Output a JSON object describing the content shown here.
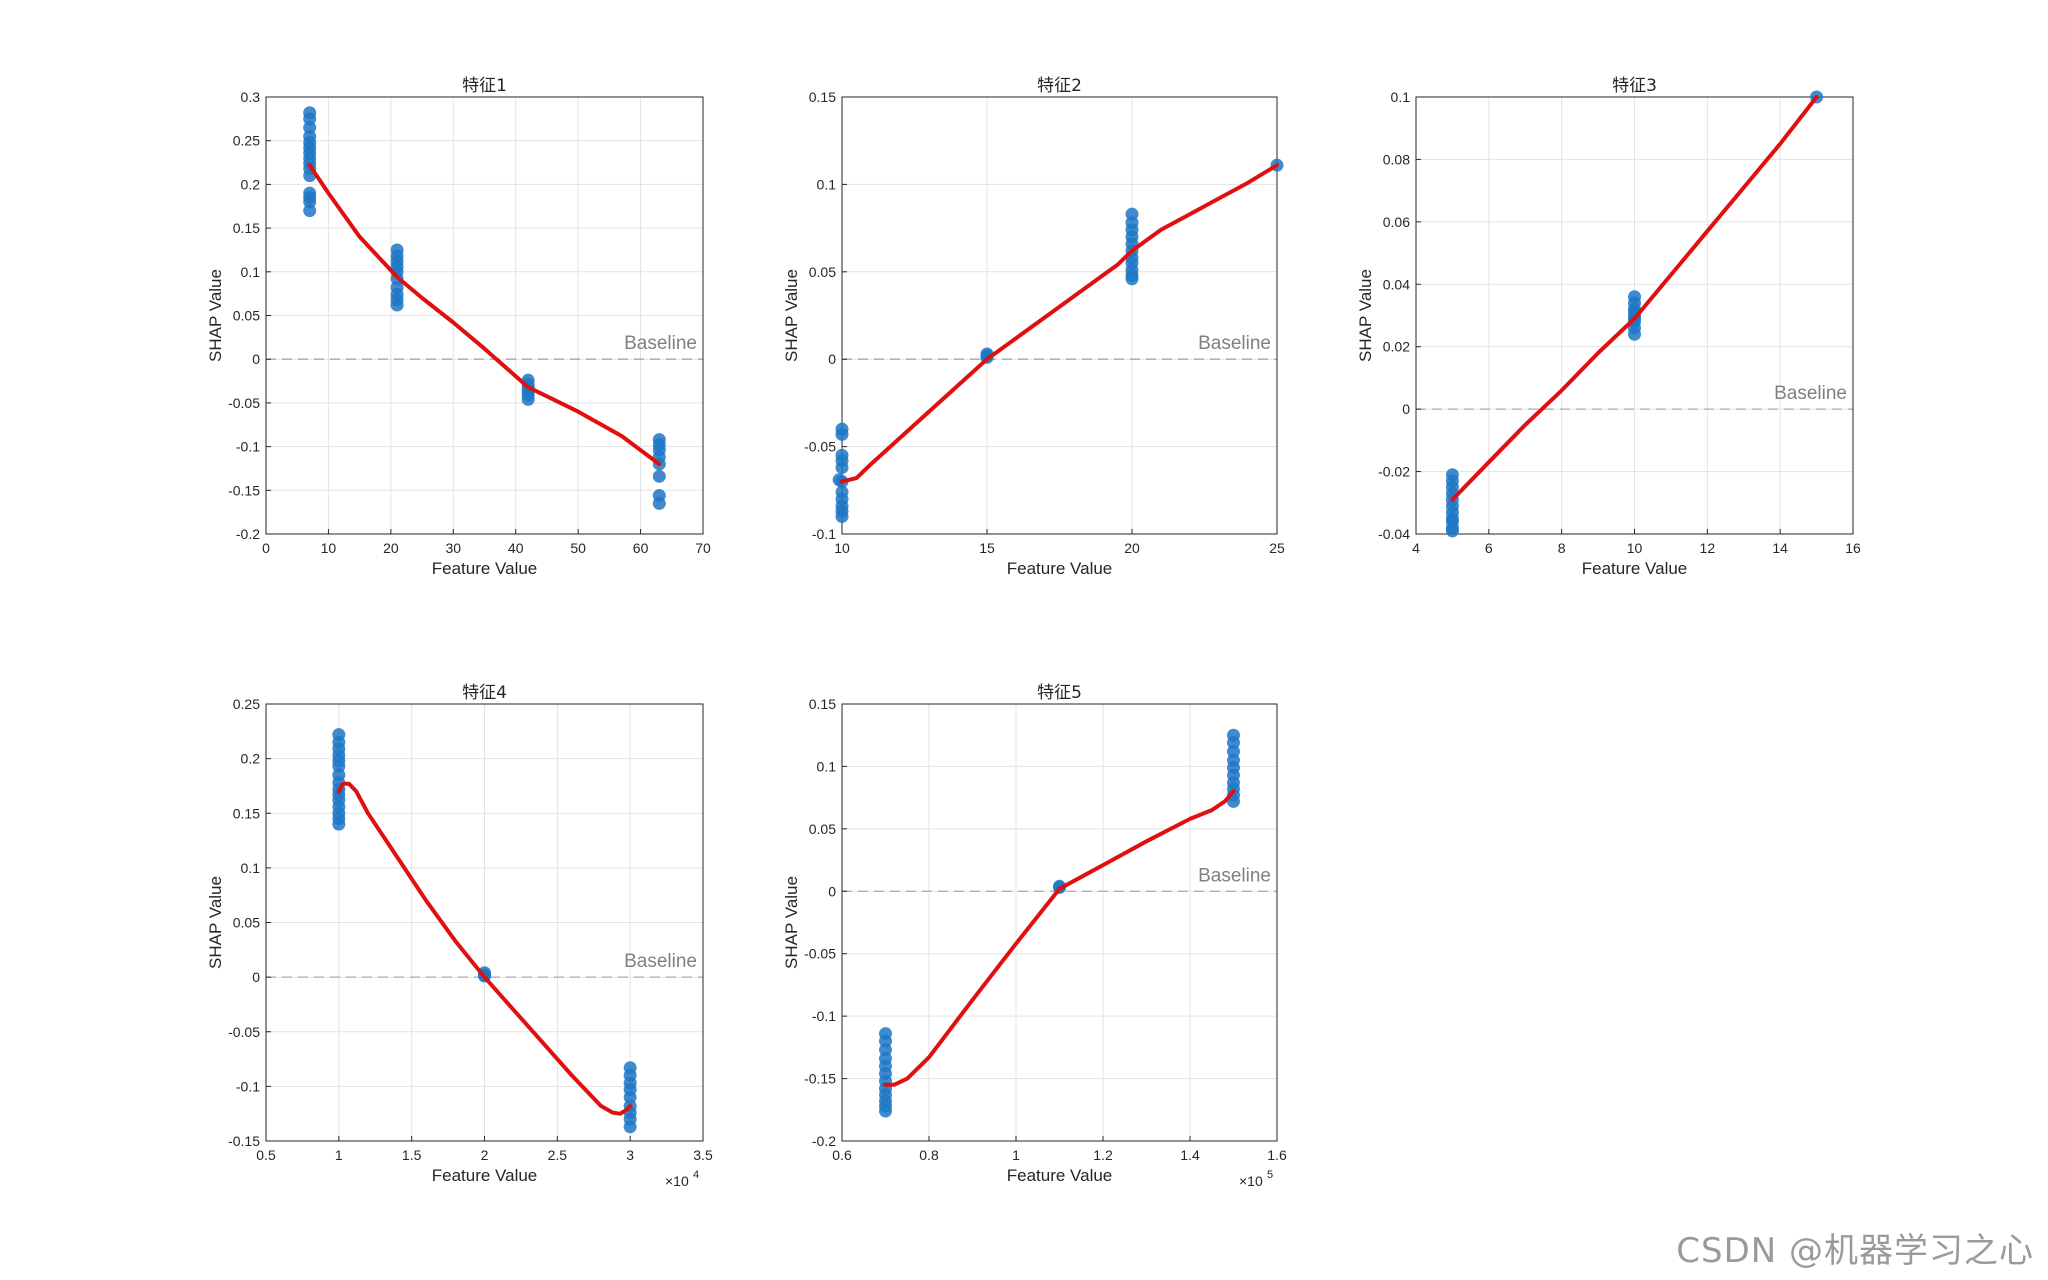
{
  "figure": {
    "watermark": "CSDN @机器学习之心"
  },
  "chart_data": [
    {
      "type": "scatter",
      "title": "特征1",
      "xlabel": "Feature Value",
      "ylabel": "SHAP Value",
      "xlim": [
        0,
        70
      ],
      "ylim": [
        -0.2,
        0.3
      ],
      "xticks": [
        0,
        10,
        20,
        30,
        40,
        50,
        60,
        70
      ],
      "xtick_labels": [
        "0",
        "10",
        "20",
        "30",
        "40",
        "50",
        "60",
        "70"
      ],
      "yticks": [
        -0.2,
        -0.15,
        -0.1,
        -0.05,
        0,
        0.05,
        0.1,
        0.15,
        0.2,
        0.25,
        0.3
      ],
      "ytick_labels": [
        "-0.2",
        "-0.15",
        "-0.1",
        "-0.05",
        "0",
        "0.05",
        "0.1",
        "0.15",
        "0.2",
        "0.25",
        "0.3"
      ],
      "x_exponent": "",
      "baseline": {
        "label": "Baseline",
        "value": 0
      },
      "points": {
        "x": [
          7,
          7,
          7,
          7,
          7,
          7,
          7,
          7,
          7,
          7,
          7,
          7,
          7,
          7,
          7,
          21,
          21,
          21,
          21,
          21,
          21,
          21,
          21,
          21,
          21,
          42,
          42,
          42,
          42,
          42,
          42,
          63,
          63,
          63,
          63,
          63,
          63,
          63,
          63
        ],
        "y": [
          0.282,
          0.275,
          0.265,
          0.255,
          0.248,
          0.242,
          0.236,
          0.23,
          0.224,
          0.218,
          0.21,
          0.19,
          0.185,
          0.18,
          0.17,
          0.125,
          0.118,
          0.112,
          0.106,
          0.1,
          0.092,
          0.082,
          0.074,
          0.068,
          0.062,
          -0.024,
          -0.029,
          -0.033,
          -0.037,
          -0.041,
          -0.046,
          -0.092,
          -0.098,
          -0.104,
          -0.112,
          -0.12,
          -0.134,
          -0.156,
          -0.165
        ]
      },
      "fit": {
        "x": [
          7,
          10,
          15,
          21,
          25,
          30,
          35,
          42,
          50,
          57,
          63
        ],
        "y": [
          0.222,
          0.19,
          0.14,
          0.094,
          0.07,
          0.042,
          0.012,
          -0.032,
          -0.06,
          -0.088,
          -0.12
        ]
      }
    },
    {
      "type": "scatter",
      "title": "特征2",
      "xlabel": "Feature Value",
      "ylabel": "SHAP Value",
      "xlim": [
        10,
        25
      ],
      "ylim": [
        -0.1,
        0.15
      ],
      "xticks": [
        10,
        15,
        20,
        25
      ],
      "xtick_labels": [
        "10",
        "15",
        "20",
        "25"
      ],
      "yticks": [
        -0.1,
        -0.05,
        0,
        0.05,
        0.1,
        0.15
      ],
      "ytick_labels": [
        "-0.1",
        "-0.05",
        "0",
        "0.05",
        "0.1",
        "0.15"
      ],
      "x_exponent": "",
      "baseline": {
        "label": "Baseline",
        "value": 0
      },
      "points": {
        "x": [
          10,
          10,
          10,
          10,
          10,
          10,
          10,
          10,
          10,
          10,
          10,
          9.9,
          15,
          15,
          15,
          20,
          20,
          20,
          20,
          20,
          20,
          20,
          20,
          20,
          20,
          20,
          25
        ],
        "y": [
          -0.04,
          -0.043,
          -0.055,
          -0.058,
          -0.062,
          -0.07,
          -0.076,
          -0.08,
          -0.084,
          -0.087,
          -0.09,
          -0.069,
          0.002,
          0.001,
          0.003,
          0.083,
          0.078,
          0.074,
          0.07,
          0.066,
          0.062,
          0.058,
          0.055,
          0.051,
          0.048,
          0.046,
          0.111
        ]
      },
      "fit": {
        "x": [
          10,
          10.5,
          11,
          12,
          13,
          14,
          15,
          16,
          17,
          18,
          19,
          19.5,
          20,
          20.5,
          21,
          22,
          23,
          24,
          25
        ],
        "y": [
          -0.07,
          -0.068,
          -0.06,
          -0.045,
          -0.03,
          -0.015,
          0.0,
          0.012,
          0.024,
          0.036,
          0.048,
          0.054,
          0.062,
          0.068,
          0.074,
          0.083,
          0.092,
          0.101,
          0.111
        ]
      }
    },
    {
      "type": "scatter",
      "title": "特征3",
      "xlabel": "Feature Value",
      "ylabel": "SHAP Value",
      "xlim": [
        4,
        16
      ],
      "ylim": [
        -0.04,
        0.1
      ],
      "xticks": [
        4,
        6,
        8,
        10,
        12,
        14,
        16
      ],
      "xtick_labels": [
        "4",
        "6",
        "8",
        "10",
        "12",
        "14",
        "16"
      ],
      "yticks": [
        -0.04,
        -0.02,
        0,
        0.02,
        0.04,
        0.06,
        0.08,
        0.1
      ],
      "ytick_labels": [
        "-0.04",
        "-0.02",
        "0",
        "0.02",
        "0.04",
        "0.06",
        "0.08",
        "0.1"
      ],
      "x_exponent": "",
      "baseline": {
        "label": "Baseline",
        "value": 0
      },
      "points": {
        "x": [
          5,
          5,
          5,
          5,
          5,
          5,
          5,
          5,
          5,
          5,
          5,
          10,
          10,
          10,
          10,
          10,
          10,
          10,
          10,
          10,
          15
        ],
        "y": [
          -0.021,
          -0.023,
          -0.025,
          -0.027,
          -0.029,
          -0.031,
          -0.033,
          -0.035,
          -0.036,
          -0.038,
          -0.039,
          0.036,
          0.034,
          0.032,
          0.031,
          0.03,
          0.029,
          0.028,
          0.026,
          0.024,
          0.1
        ]
      },
      "fit": {
        "x": [
          5,
          6,
          7,
          8,
          9,
          10,
          11,
          12,
          13,
          14,
          15
        ],
        "y": [
          -0.029,
          -0.017,
          -0.005,
          0.006,
          0.018,
          0.029,
          0.043,
          0.057,
          0.071,
          0.085,
          0.1
        ]
      }
    },
    {
      "type": "scatter",
      "title": "特征4",
      "xlabel": "Feature Value",
      "ylabel": "SHAP Value",
      "xlim": [
        0.5,
        3.5
      ],
      "ylim": [
        -0.15,
        0.25
      ],
      "xticks": [
        0.5,
        1,
        1.5,
        2,
        2.5,
        3,
        3.5
      ],
      "xtick_labels": [
        "0.5",
        "1",
        "1.5",
        "2",
        "2.5",
        "3",
        "3.5"
      ],
      "yticks": [
        -0.15,
        -0.1,
        -0.05,
        0,
        0.05,
        0.1,
        0.15,
        0.2,
        0.25
      ],
      "ytick_labels": [
        "-0.15",
        "-0.1",
        "-0.05",
        "0",
        "0.05",
        "0.1",
        "0.15",
        "0.2",
        "0.25"
      ],
      "x_exponent": "×10",
      "x_exponent_power": "4",
      "baseline": {
        "label": "Baseline",
        "value": 0
      },
      "points": {
        "x": [
          1,
          1,
          1,
          1,
          1,
          1,
          1,
          1,
          1,
          1,
          1,
          1,
          1,
          1,
          1,
          2,
          2,
          2,
          3,
          3,
          3,
          3,
          3,
          3,
          3,
          3,
          3
        ],
        "y": [
          0.222,
          0.215,
          0.209,
          0.203,
          0.198,
          0.193,
          0.185,
          0.178,
          0.172,
          0.167,
          0.162,
          0.156,
          0.15,
          0.145,
          0.14,
          0.004,
          0.002,
          0.001,
          -0.083,
          -0.09,
          -0.097,
          -0.103,
          -0.11,
          -0.118,
          -0.124,
          -0.13,
          -0.137
        ]
      },
      "fit": {
        "x": [
          1,
          1.03,
          1.07,
          1.12,
          1.2,
          1.4,
          1.6,
          1.8,
          2,
          2.2,
          2.4,
          2.6,
          2.8,
          2.88,
          2.93,
          2.97,
          3
        ],
        "y": [
          0.17,
          0.177,
          0.177,
          0.17,
          0.15,
          0.11,
          0.07,
          0.033,
          0.0,
          -0.03,
          -0.06,
          -0.09,
          -0.118,
          -0.124,
          -0.125,
          -0.122,
          -0.118
        ]
      }
    },
    {
      "type": "scatter",
      "title": "特征5",
      "xlabel": "Feature Value",
      "ylabel": "SHAP Value",
      "xlim": [
        0.6,
        1.6
      ],
      "ylim": [
        -0.2,
        0.15
      ],
      "xticks": [
        0.6,
        0.8,
        1,
        1.2,
        1.4,
        1.6
      ],
      "xtick_labels": [
        "0.6",
        "0.8",
        "1",
        "1.2",
        "1.4",
        "1.6"
      ],
      "yticks": [
        -0.2,
        -0.15,
        -0.1,
        -0.05,
        0,
        0.05,
        0.1,
        0.15
      ],
      "ytick_labels": [
        "-0.2",
        "-0.15",
        "-0.1",
        "-0.05",
        "0",
        "0.05",
        "0.1",
        "0.15"
      ],
      "x_exponent": "×10",
      "x_exponent_power": "5",
      "baseline": {
        "label": "Baseline",
        "value": 0
      },
      "points": {
        "x": [
          0.7,
          0.7,
          0.7,
          0.7,
          0.7,
          0.7,
          0.7,
          0.7,
          0.7,
          0.7,
          0.7,
          0.7,
          1.1,
          1.1,
          1.5,
          1.5,
          1.5,
          1.5,
          1.5,
          1.5,
          1.5,
          1.5,
          1.5,
          1.5
        ],
        "y": [
          -0.114,
          -0.12,
          -0.127,
          -0.134,
          -0.14,
          -0.146,
          -0.152,
          -0.158,
          -0.163,
          -0.168,
          -0.172,
          -0.176,
          0.003,
          0.004,
          0.125,
          0.119,
          0.112,
          0.105,
          0.099,
          0.093,
          0.087,
          0.082,
          0.077,
          0.072
        ]
      },
      "fit": {
        "x": [
          0.7,
          0.72,
          0.75,
          0.8,
          0.9,
          1.0,
          1.1,
          1.2,
          1.3,
          1.4,
          1.45,
          1.48,
          1.5
        ],
        "y": [
          -0.155,
          -0.155,
          -0.15,
          -0.133,
          -0.087,
          -0.042,
          0.002,
          0.021,
          0.04,
          0.058,
          0.065,
          0.072,
          0.08
        ]
      }
    }
  ]
}
